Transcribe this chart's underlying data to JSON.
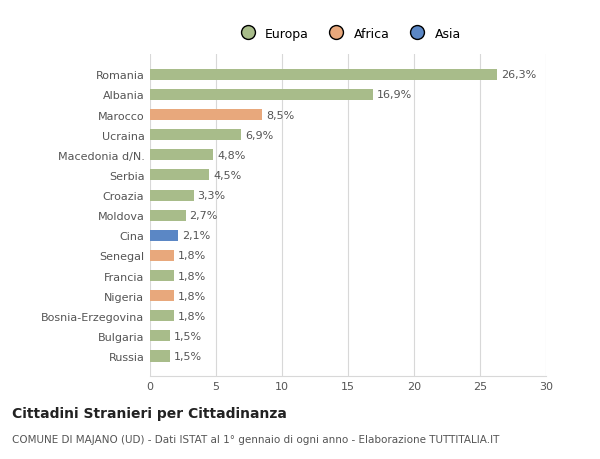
{
  "countries": [
    "Romania",
    "Albania",
    "Marocco",
    "Ucraina",
    "Macedonia d/N.",
    "Serbia",
    "Croazia",
    "Moldova",
    "Cina",
    "Senegal",
    "Francia",
    "Nigeria",
    "Bosnia-Erzegovina",
    "Bulgaria",
    "Russia"
  ],
  "values": [
    26.3,
    16.9,
    8.5,
    6.9,
    4.8,
    4.5,
    3.3,
    2.7,
    2.1,
    1.8,
    1.8,
    1.8,
    1.8,
    1.5,
    1.5
  ],
  "labels": [
    "26,3%",
    "16,9%",
    "8,5%",
    "6,9%",
    "4,8%",
    "4,5%",
    "3,3%",
    "2,7%",
    "2,1%",
    "1,8%",
    "1,8%",
    "1,8%",
    "1,8%",
    "1,5%",
    "1,5%"
  ],
  "continents": [
    "Europa",
    "Europa",
    "Africa",
    "Europa",
    "Europa",
    "Europa",
    "Europa",
    "Europa",
    "Asia",
    "Africa",
    "Europa",
    "Africa",
    "Europa",
    "Europa",
    "Europa"
  ],
  "colors": {
    "Europa": "#a8bc8a",
    "Africa": "#e8a87c",
    "Asia": "#5b87c5"
  },
  "legend_order": [
    "Europa",
    "Africa",
    "Asia"
  ],
  "legend_colors": {
    "Europa": "#a8bc8a",
    "Africa": "#e8a87c",
    "Asia": "#5b87c5"
  },
  "xlim": [
    0,
    30
  ],
  "xticks": [
    0,
    5,
    10,
    15,
    20,
    25,
    30
  ],
  "title": "Cittadini Stranieri per Cittadinanza",
  "subtitle": "COMUNE DI MAJANO (UD) - Dati ISTAT al 1° gennaio di ogni anno - Elaborazione TUTTITALIA.IT",
  "background_color": "#ffffff",
  "grid_color": "#d8d8d8",
  "bar_height": 0.55,
  "label_fontsize": 8,
  "ytick_fontsize": 8
}
